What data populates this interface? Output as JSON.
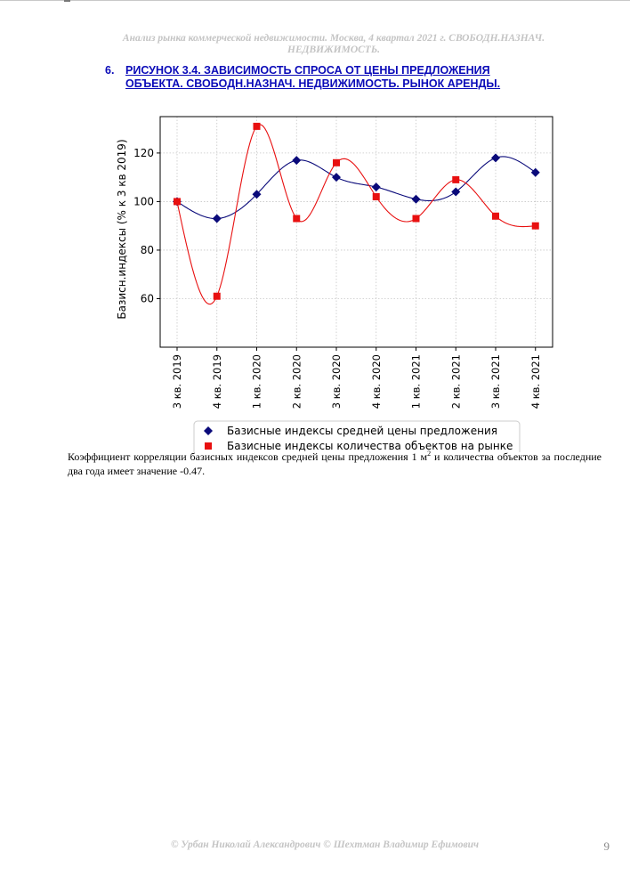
{
  "header": {
    "line1": "Анализ рынка коммерческой недвижимости.   Москва,  4 квартал 2021 г.   СВОБОДН.НАЗНАЧ.",
    "line2": "НЕДВИЖИМОСТЬ."
  },
  "figure": {
    "number": "6.",
    "line1": "РИСУНОК 3.4. ЗАВИСИМОСТЬ СПРОСА ОТ ЦЕНЫ ПРЕДЛОЖЕНИЯ",
    "line2": "ОБЪЕКТА.  СВОБОДН.НАЗНАЧ. НЕДВИЖИМОСТЬ. РЫНОК АРЕНДЫ."
  },
  "chart_data": {
    "type": "line",
    "ylabel": "Базисн.индексы (% к 3 кв 2019)",
    "xlabel": "",
    "categories": [
      "3 кв. 2019",
      "4 кв. 2019",
      "1 кв. 2020",
      "2 кв. 2020",
      "3 кв. 2020",
      "4 кв. 2020",
      "1 кв. 2021",
      "2 кв. 2021",
      "3 кв. 2021",
      "4 кв. 2021"
    ],
    "ylim": [
      40,
      135
    ],
    "yticks": [
      60,
      80,
      100,
      120
    ],
    "grid": true,
    "smooth": true,
    "legend_position": "bottom",
    "series": [
      {
        "name": "Базисные индексы средней цены предложения",
        "marker": "diamond",
        "color": "#0a0a7a",
        "values": [
          100,
          93,
          103,
          117,
          110,
          106,
          101,
          104,
          118,
          112
        ]
      },
      {
        "name": "Базисные индексы количества объектов на рынке",
        "marker": "square",
        "color": "#e81010",
        "values": [
          100,
          61,
          131,
          93,
          116,
          102,
          93,
          109,
          94,
          90
        ]
      }
    ]
  },
  "body": {
    "text_before_sup": "Коэффициент корреляции базисных индексов средней цены предложения 1 м",
    "sup": "2",
    "text_after_sup": " и количества объектов за последние два года имеет значение -0.47."
  },
  "footer": {
    "copyright": "© Урбан Николай Александрович   © Шехтман Владимир Ефимович",
    "page": "9"
  }
}
